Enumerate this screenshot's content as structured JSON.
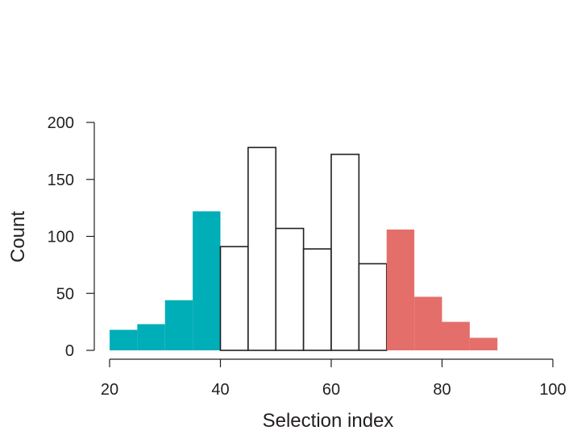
{
  "chart_data": {
    "type": "bar",
    "title": "",
    "xlabel": "Selection index",
    "ylabel": "Count",
    "xlim": [
      20,
      100
    ],
    "ylim": [
      0,
      200
    ],
    "x_ticks": [
      "20",
      "40",
      "60",
      "80",
      "100"
    ],
    "y_ticks": [
      "0",
      "50",
      "100",
      "150",
      "200"
    ],
    "grid": false,
    "bins": [
      {
        "start": 20,
        "end": 25,
        "value": 18,
        "color": "#00aeb8"
      },
      {
        "start": 25,
        "end": 30,
        "value": 23,
        "color": "#00aeb8"
      },
      {
        "start": 30,
        "end": 35,
        "value": 44,
        "color": "#00aeb8"
      },
      {
        "start": 35,
        "end": 40,
        "value": 122,
        "color": "#00aeb8"
      },
      {
        "start": 40,
        "end": 45,
        "value": 91,
        "color": "#ffffff"
      },
      {
        "start": 45,
        "end": 50,
        "value": 178,
        "color": "#ffffff"
      },
      {
        "start": 50,
        "end": 55,
        "value": 107,
        "color": "#ffffff"
      },
      {
        "start": 55,
        "end": 60,
        "value": 89,
        "color": "#ffffff"
      },
      {
        "start": 60,
        "end": 65,
        "value": 172,
        "color": "#ffffff"
      },
      {
        "start": 65,
        "end": 70,
        "value": 76,
        "color": "#ffffff"
      },
      {
        "start": 70,
        "end": 75,
        "value": 106,
        "color": "#e46f6a"
      },
      {
        "start": 75,
        "end": 80,
        "value": 47,
        "color": "#e46f6a"
      },
      {
        "start": 80,
        "end": 85,
        "value": 25,
        "color": "#e46f6a"
      },
      {
        "start": 85,
        "end": 90,
        "value": 11,
        "color": "#e46f6a"
      }
    ]
  }
}
